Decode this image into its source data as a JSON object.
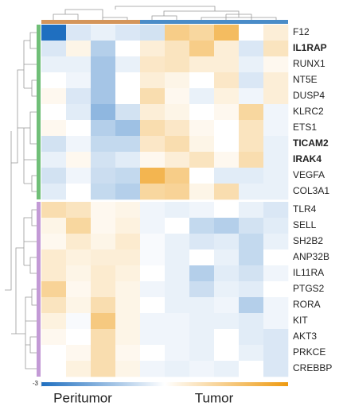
{
  "chart_data": {
    "type": "heatmap",
    "rows": [
      "F12",
      "IL1RAP",
      "RUNX1",
      "NT5E",
      "DUSP4",
      "KLRC2",
      "ETS1",
      "TICAM2",
      "IRAK4",
      "VEGFA",
      "COL3A1",
      "TLR4",
      "SELL",
      "SH2B2",
      "ANP32B",
      "IL11RA",
      "PTGS2",
      "RORA",
      "KIT",
      "AKT3",
      "PRKCE",
      "CREBBP"
    ],
    "bold": [
      false,
      true,
      false,
      false,
      false,
      false,
      false,
      true,
      true,
      false,
      false,
      false,
      false,
      false,
      false,
      false,
      false,
      false,
      false,
      false,
      false,
      false
    ],
    "row_groups": [
      {
        "color": "#70bf78",
        "count": 11
      },
      {
        "color": "#c39ad6",
        "count": 11
      }
    ],
    "column_groups": [
      {
        "name": "Peritumor",
        "color": "#d4955a",
        "count": 4
      },
      {
        "name": "Tumor",
        "color": "#4a8cc8",
        "count": 6
      }
    ],
    "values": [
      [
        -3,
        -0.5,
        -0.3,
        -0.5,
        -0.6,
        1.5,
        1.2,
        2,
        0,
        0.5
      ],
      [
        -0.5,
        0.3,
        -1,
        0,
        0.5,
        0.8,
        1.5,
        0.5,
        -0.5,
        0.8
      ],
      [
        -0.3,
        -0.3,
        -1.2,
        -0.3,
        0.7,
        0.8,
        0.5,
        0.5,
        -0.3,
        0.2
      ],
      [
        0,
        -0.2,
        -1.2,
        0,
        0.5,
        0.3,
        0,
        0.7,
        -0.5,
        0.5
      ],
      [
        0.2,
        -0.5,
        -1.2,
        0,
        1,
        0.2,
        -0.3,
        0.4,
        -0.2,
        0.5
      ],
      [
        0,
        -0.4,
        -1.5,
        -0.6,
        0.5,
        0.3,
        0,
        0.2,
        1.2,
        -0.2
      ],
      [
        0.2,
        0,
        -1,
        -1.3,
        1,
        0.7,
        0.2,
        0,
        0.8,
        -0.2
      ],
      [
        -0.6,
        -0.2,
        -0.8,
        -0.8,
        0.7,
        1,
        0.3,
        0,
        0.8,
        -0.3
      ],
      [
        -0.3,
        0.2,
        -0.6,
        -0.4,
        0.2,
        0.5,
        0.8,
        0.2,
        1,
        -0.3
      ],
      [
        -0.6,
        -0.2,
        -0.7,
        -0.8,
        2.2,
        1.5,
        0,
        -0.4,
        -0.4,
        -0.3
      ],
      [
        -0.4,
        0,
        -0.8,
        -1,
        1.2,
        1.3,
        0.3,
        1,
        -0.3,
        -0.3
      ],
      [
        1,
        0.8,
        0.2,
        0.3,
        -0.2,
        -0.3,
        -0.2,
        0,
        -0.3,
        -0.5
      ],
      [
        0.3,
        1.2,
        0.2,
        0.4,
        -0.2,
        0,
        -0.8,
        -1,
        -0.6,
        -0.4
      ],
      [
        0.2,
        0.6,
        0.3,
        0.6,
        -0.1,
        -0.3,
        -0.5,
        -0.4,
        -0.8,
        -0.3
      ],
      [
        0.6,
        0.4,
        0.5,
        0.5,
        -0.1,
        -0.3,
        0,
        -0.3,
        -0.8,
        0
      ],
      [
        0.6,
        0.3,
        0.6,
        0.4,
        0,
        -0.3,
        -1,
        -0.4,
        -0.6,
        -0.2
      ],
      [
        1.3,
        0.2,
        0.6,
        0.3,
        -0.2,
        -0.3,
        -0.7,
        -0.3,
        -0.4,
        0
      ],
      [
        0.8,
        0.3,
        1,
        0.3,
        0,
        -0.3,
        -0.3,
        -0.2,
        -1,
        -0.2
      ],
      [
        0.4,
        -0.1,
        1.6,
        0.3,
        -0.2,
        -0.2,
        -0.3,
        -0.3,
        -0.4,
        -0.2
      ],
      [
        0.2,
        0,
        1,
        0.3,
        -0.2,
        -0.2,
        -0.3,
        0,
        -0.4,
        -0.5
      ],
      [
        0,
        0.2,
        1,
        0.2,
        0,
        -0.2,
        -0.3,
        0,
        -0.3,
        -0.5
      ],
      [
        0,
        0.4,
        1,
        0.3,
        -0.2,
        -0.3,
        -0.2,
        -0.3,
        0,
        -0.5
      ]
    ],
    "clim": [
      -3,
      3
    ],
    "cticks": [
      -3
    ],
    "low_color": "#1f6fc0",
    "mid_color": "#ffffff",
    "high_color": "#ee9a10"
  }
}
